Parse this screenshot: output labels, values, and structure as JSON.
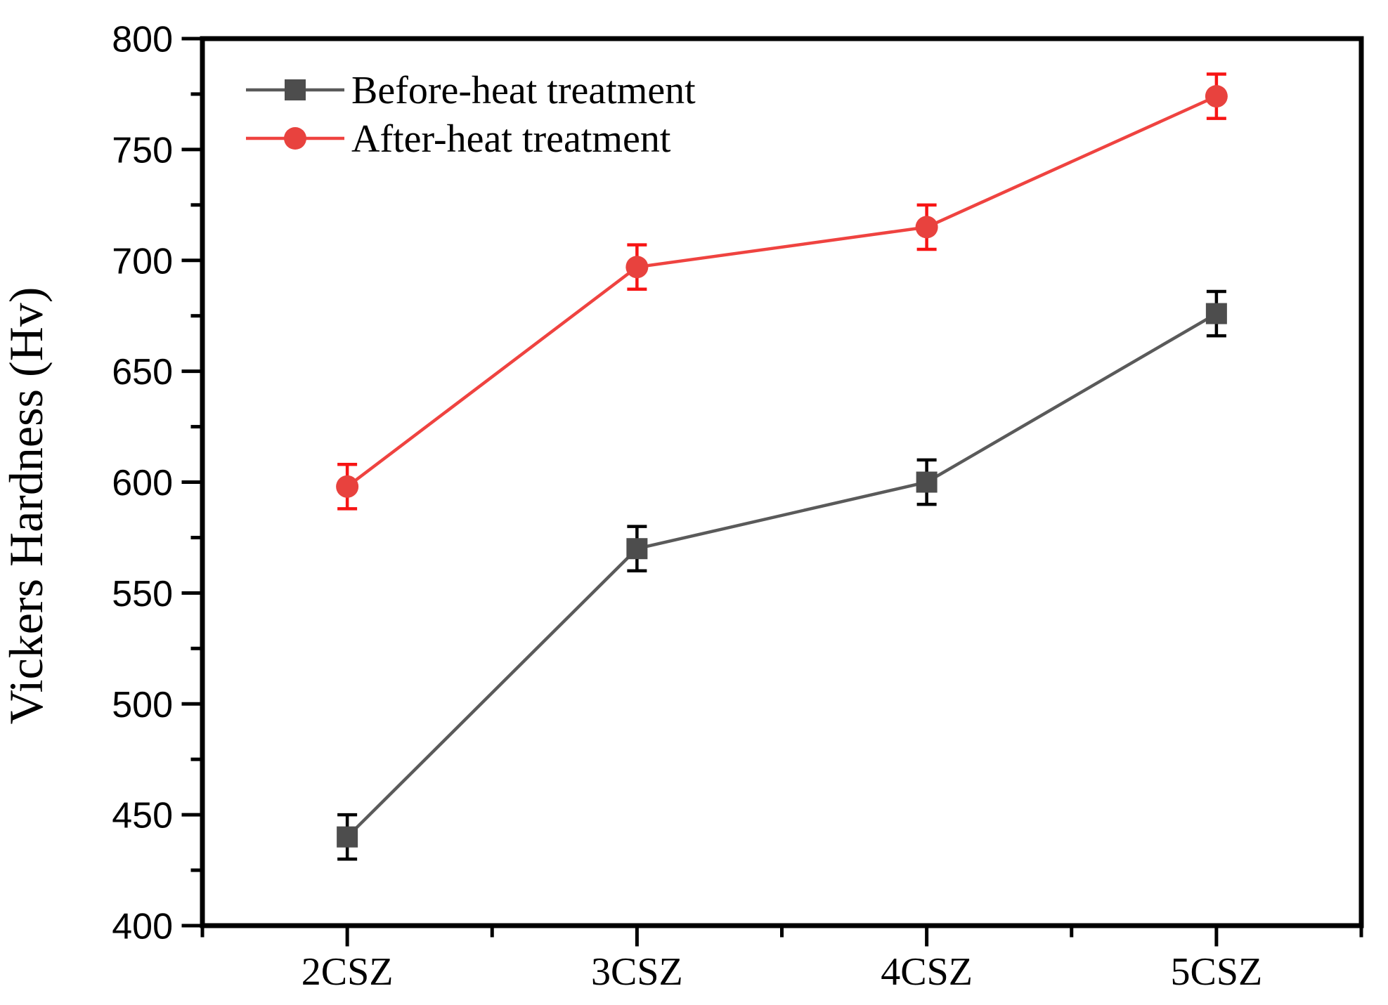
{
  "figure": {
    "background_color": "#ffffff",
    "axis_color": "#000000"
  },
  "chart_data": {
    "type": "line",
    "title": "",
    "xlabel": "",
    "ylabel": "Vickers Hardness (Hv)",
    "categories": [
      "2CSZ",
      "3CSZ",
      "4CSZ",
      "5CSZ"
    ],
    "y_tick_labels": [
      "400",
      "450",
      "500",
      "550",
      "600",
      "650",
      "700",
      "750",
      "800"
    ],
    "ylim": [
      400,
      800
    ],
    "y_major_step": 50,
    "y_minor_step": 25,
    "grid": false,
    "legend_position": "top-left",
    "series": [
      {
        "name": "Before-heat treatment",
        "marker": "square",
        "values": [
          440,
          570,
          600,
          676
        ],
        "errors": [
          10,
          10,
          10,
          10
        ],
        "line_color": "#5a5a5a",
        "marker_color": "#4d4d4d",
        "error_color": "#000000"
      },
      {
        "name": "After-heat treatment",
        "marker": "circle",
        "values": [
          598,
          697,
          715,
          774
        ],
        "errors": [
          10,
          10,
          10,
          10
        ],
        "line_color": "#ef4340",
        "marker_color": "#e8423e",
        "error_color": "#f71414"
      }
    ]
  }
}
